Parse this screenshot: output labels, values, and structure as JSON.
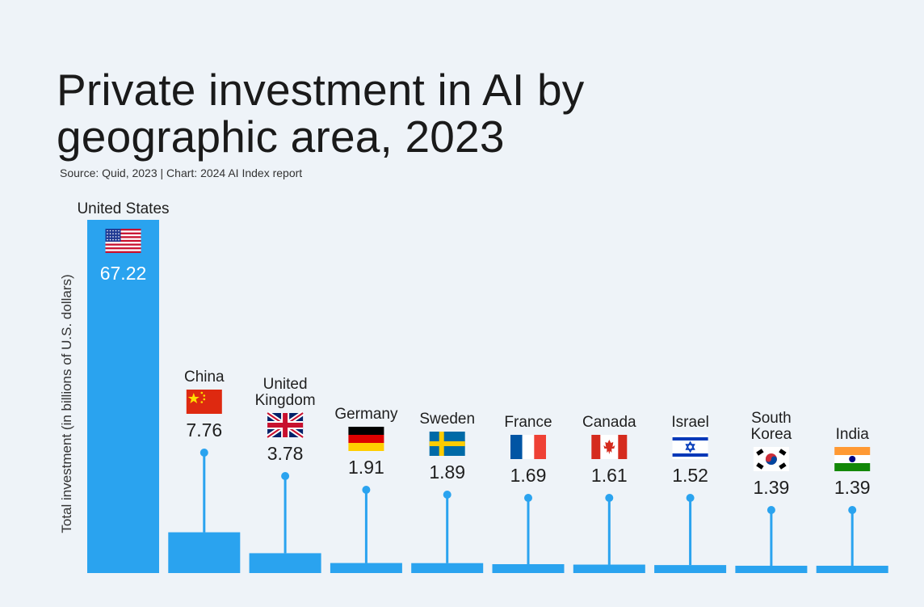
{
  "title_line1": "Private investment in AI by",
  "title_line2": "geographic area, 2023",
  "source": "Source: Quid, 2023 | Chart: 2024 AI Index report",
  "colors": {
    "bar": "#2aa3ef",
    "background": "#eef3f8"
  },
  "chart_data": {
    "type": "bar",
    "ylabel": "Total investment (in billions of U.S. dollars)",
    "ylim": [
      0,
      67.22
    ],
    "grid": false,
    "categories": [
      [
        "United States"
      ],
      [
        "China"
      ],
      [
        "United",
        "Kingdom"
      ],
      [
        "Germany"
      ],
      [
        "Sweden"
      ],
      [
        "France"
      ],
      [
        "Canada"
      ],
      [
        "Israel"
      ],
      [
        "South",
        "Korea"
      ],
      [
        "India"
      ]
    ],
    "values": [
      67.22,
      7.76,
      3.78,
      1.91,
      1.89,
      1.69,
      1.61,
      1.52,
      1.39,
      1.39
    ],
    "value_labels": [
      "67.22",
      "7.76",
      "3.78",
      "1.91",
      "1.89",
      "1.69",
      "1.61",
      "1.52",
      "1.39",
      "1.39"
    ],
    "flags": [
      "us-flag-icon",
      "china-flag-icon",
      "uk-flag-icon",
      "germany-flag-icon",
      "sweden-flag-icon",
      "france-flag-icon",
      "canada-flag-icon",
      "israel-flag-icon",
      "south-korea-flag-icon",
      "india-flag-icon"
    ]
  }
}
